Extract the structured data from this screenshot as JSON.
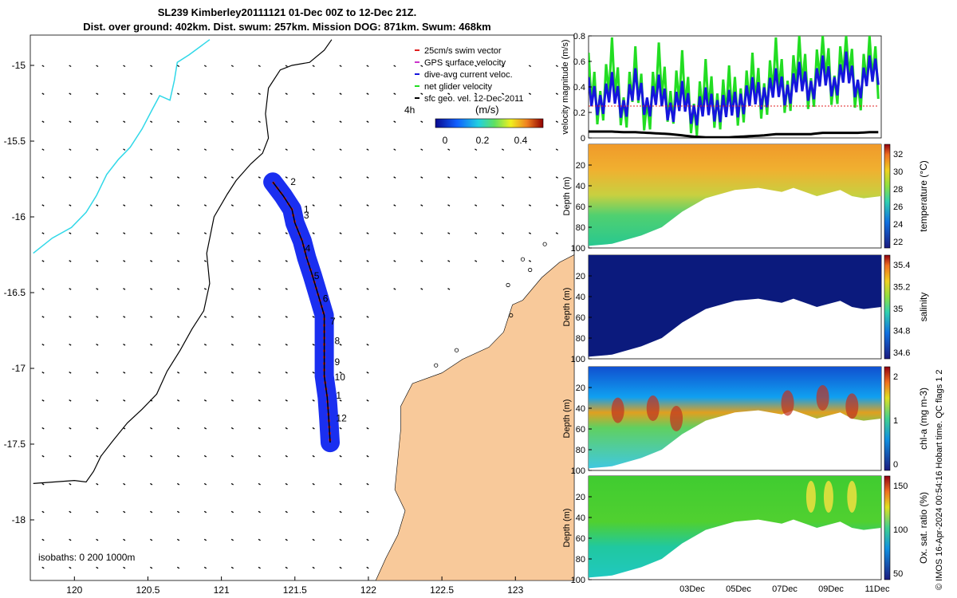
{
  "header": {
    "title_line1": "SL239 Kimberley20111121 01-Dec 00Z to 12-Dec 21Z.",
    "title_line2": "Dist. over ground: 402km. Dist. swum: 257km. Mission DOG: 871km. Swum: 468km"
  },
  "footer_note": "© IMOS 16-Apr-2024 00:54:16 Hobart time. QC flags 1  2",
  "colors": {
    "land": "#f8c99a",
    "swath": "#1a2ff0",
    "swim_vector": "#e02020",
    "coast_line": "#30d8e8",
    "isobath": "#000000",
    "net_velocity": "#22dd22",
    "dive_avg": "#1515dd",
    "gps_velocity": "#cc33cc"
  },
  "chart_data": [
    {
      "type": "scatter",
      "name": "map",
      "xlim": [
        119.7,
        123.4
      ],
      "ylim": [
        -18.4,
        -14.8
      ],
      "x_ticks": [
        "120",
        "120.5",
        "121",
        "121.5",
        "122",
        "122.5",
        "123"
      ],
      "x_tick_values": [
        120,
        120.5,
        121,
        121.5,
        122,
        122.5,
        123
      ],
      "y_ticks": [
        "-15",
        "-15.5",
        "-16",
        "-16.5",
        "-17",
        "-17.5",
        "-18"
      ],
      "y_tick_values": [
        -15,
        -15.5,
        -16,
        -16.5,
        -17,
        -17.5,
        -18
      ],
      "legend": [
        "25cm/s swim vector",
        "GPS surface velocity",
        "dive-avg current veloc.",
        "net glider velocity",
        "sfc geo. vel. 12-Dec-2011"
      ],
      "legend_placement": "top-right",
      "colorbar": {
        "label": "(m/s)",
        "ticks": [
          "0",
          "0.2",
          "0.4"
        ],
        "range": [
          0,
          0.5
        ]
      },
      "time_label": "4h",
      "isobath_label": "isobaths: 0   200  1000m",
      "day_markers": [
        {
          "label": "2",
          "lon": 121.47,
          "lat": -15.79
        },
        {
          "label": "1",
          "lon": 121.56,
          "lat": -15.97
        },
        {
          "label": "3",
          "lon": 121.56,
          "lat": -16.01
        },
        {
          "label": "4",
          "lon": 121.57,
          "lat": -16.23
        },
        {
          "label": "5",
          "lon": 121.63,
          "lat": -16.41
        },
        {
          "label": "6",
          "lon": 121.69,
          "lat": -16.56
        },
        {
          "label": "7",
          "lon": 121.74,
          "lat": -16.71
        },
        {
          "label": "8",
          "lon": 121.77,
          "lat": -16.84
        },
        {
          "label": "9",
          "lon": 121.77,
          "lat": -16.98
        },
        {
          "label": "10",
          "lon": 121.77,
          "lat": -17.08
        },
        {
          "label": "1",
          "lon": 121.78,
          "lat": -17.2
        },
        {
          "label": "12",
          "lon": 121.78,
          "lat": -17.35
        }
      ],
      "track": [
        [
          121.35,
          -15.77
        ],
        [
          121.42,
          -15.86
        ],
        [
          121.48,
          -15.95
        ],
        [
          121.5,
          -16.04
        ],
        [
          121.55,
          -16.16
        ],
        [
          121.58,
          -16.27
        ],
        [
          121.62,
          -16.39
        ],
        [
          121.66,
          -16.52
        ],
        [
          121.7,
          -16.65
        ],
        [
          121.7,
          -16.78
        ],
        [
          121.7,
          -16.92
        ],
        [
          121.7,
          -17.05
        ],
        [
          121.72,
          -17.19
        ],
        [
          121.73,
          -17.33
        ],
        [
          121.74,
          -17.49
        ]
      ],
      "isobath_0": [
        [
          119.72,
          -16.24
        ],
        [
          119.85,
          -16.14
        ],
        [
          119.98,
          -16.07
        ],
        [
          120.08,
          -15.97
        ],
        [
          120.15,
          -15.86
        ],
        [
          120.22,
          -15.72
        ],
        [
          120.3,
          -15.62
        ],
        [
          120.38,
          -15.54
        ],
        [
          120.46,
          -15.42
        ],
        [
          120.53,
          -15.29
        ],
        [
          120.58,
          -15.2
        ],
        [
          120.65,
          -15.23
        ],
        [
          120.68,
          -15.1
        ],
        [
          120.7,
          -14.98
        ],
        [
          120.78,
          -14.93
        ],
        [
          120.92,
          -14.83
        ]
      ],
      "isobath_200": [
        [
          119.72,
          -17.76
        ],
        [
          120.0,
          -17.74
        ],
        [
          120.08,
          -17.75
        ],
        [
          120.13,
          -17.68
        ],
        [
          120.18,
          -17.58
        ],
        [
          120.26,
          -17.48
        ],
        [
          120.36,
          -17.36
        ],
        [
          120.46,
          -17.27
        ],
        [
          120.56,
          -17.17
        ],
        [
          120.63,
          -17.02
        ],
        [
          120.72,
          -16.88
        ],
        [
          120.8,
          -16.74
        ],
        [
          120.88,
          -16.62
        ],
        [
          120.92,
          -16.44
        ],
        [
          120.9,
          -16.24
        ],
        [
          120.95,
          -16.0
        ],
        [
          121.04,
          -15.85
        ],
        [
          121.1,
          -15.76
        ],
        [
          121.2,
          -15.65
        ],
        [
          121.28,
          -15.58
        ],
        [
          121.32,
          -15.48
        ],
        [
          121.3,
          -15.32
        ],
        [
          121.32,
          -15.15
        ],
        [
          121.4,
          -15.03
        ],
        [
          121.48,
          -15.0
        ],
        [
          121.6,
          -14.98
        ],
        [
          121.7,
          -14.9
        ],
        [
          121.75,
          -14.83
        ]
      ],
      "land": [
        [
          123.4,
          -16.25
        ],
        [
          123.3,
          -16.3
        ],
        [
          123.18,
          -16.4
        ],
        [
          123.05,
          -16.55
        ],
        [
          122.98,
          -16.58
        ],
        [
          122.92,
          -16.76
        ],
        [
          122.82,
          -16.86
        ],
        [
          122.64,
          -16.94
        ],
        [
          122.5,
          -17.03
        ],
        [
          122.3,
          -17.1
        ],
        [
          122.22,
          -17.25
        ],
        [
          122.22,
          -17.4
        ],
        [
          122.2,
          -17.6
        ],
        [
          122.18,
          -17.8
        ],
        [
          122.25,
          -17.94
        ],
        [
          122.2,
          -18.1
        ],
        [
          122.12,
          -18.25
        ],
        [
          122.05,
          -18.4
        ],
        [
          123.4,
          -18.4
        ]
      ]
    },
    {
      "type": "line",
      "name": "velocity",
      "ylabel": "velocity magnitude (m/s)",
      "ylim": [
        0,
        0.8
      ],
      "y_ticks": [
        "0",
        "0.2",
        "0.4",
        "0.6",
        "0.8"
      ],
      "x": [
        0,
        0.5,
        1,
        1.5,
        2,
        2.5,
        3,
        3.5,
        4,
        4.5,
        5,
        5.5,
        6,
        6.5,
        7,
        7.5,
        8,
        8.5,
        9,
        9.5,
        10,
        10.5,
        11,
        11.5,
        12,
        12.5
      ],
      "series": [
        {
          "values": [
            0.5,
            0.2,
            0.62,
            0.15,
            0.55,
            0.12,
            0.58,
            0.2,
            0.52,
            0.1,
            0.45,
            0.18,
            0.4,
            0.22,
            0.5,
            0.26,
            0.62,
            0.28,
            0.68,
            0.3,
            0.75,
            0.32,
            0.78,
            0.28,
            0.7,
            0.4
          ]
        },
        {
          "values": [
            0.38,
            0.24,
            0.42,
            0.2,
            0.45,
            0.22,
            0.4,
            0.18,
            0.35,
            0.16,
            0.3,
            0.2,
            0.28,
            0.25,
            0.38,
            0.3,
            0.45,
            0.32,
            0.5,
            0.35,
            0.55,
            0.38,
            0.58,
            0.36,
            0.55,
            0.5
          ]
        },
        {
          "values": [
            0.05,
            0.05,
            0.05,
            0.045,
            0.045,
            0.04,
            0.035,
            0.03,
            0.02,
            0.01,
            0.005,
            0.005,
            0.005,
            0.01,
            0.015,
            0.02,
            0.03,
            0.03,
            0.03,
            0.03,
            0.04,
            0.04,
            0.04,
            0.04,
            0.045,
            0.045
          ]
        },
        {
          "values": [
            0.25,
            0.25,
            0.25,
            0.25,
            0.25,
            0.25,
            0.25,
            0.25,
            0.25,
            0.25,
            0.25,
            0.25,
            0.25,
            0.25,
            0.25,
            0.25,
            0.25,
            0.25,
            0.25,
            0.25,
            0.25,
            0.25,
            0.25,
            0.25,
            0.25,
            0.25
          ]
        }
      ]
    },
    {
      "type": "heatmap",
      "name": "temperature",
      "ylabel": "Depth (m)",
      "colorbar_label": "temperature (°C)",
      "ylim": [
        100,
        0
      ],
      "y_ticks": [
        "20",
        "40",
        "60",
        "80",
        "100"
      ],
      "colorbar_ticks": [
        "32",
        "30",
        "28",
        "26",
        "24",
        "22"
      ],
      "surface_color": "#f0a830",
      "deep_color": "#2ecc80"
    },
    {
      "type": "heatmap",
      "name": "salinity",
      "ylabel": "Depth (m)",
      "colorbar_label": "salinity",
      "ylim": [
        100,
        0
      ],
      "y_ticks": [
        "20",
        "40",
        "60",
        "80",
        "100"
      ],
      "colorbar_ticks": [
        "35.4",
        "35.2",
        "35",
        "34.8",
        "34.6"
      ],
      "surface_color": "#0a1a80",
      "deep_color": "#0a1a80"
    },
    {
      "type": "heatmap",
      "name": "chl-a",
      "ylabel": "Depth (m)",
      "colorbar_label": "chl-a (mg m-3)",
      "ylim": [
        100,
        0
      ],
      "y_ticks": [
        "20",
        "40",
        "60",
        "80",
        "100"
      ],
      "colorbar_ticks": [
        "2",
        "1",
        "0"
      ],
      "surface_color": "#1060d8",
      "deep_color": "#40c8d0"
    },
    {
      "type": "heatmap",
      "name": "oxygen",
      "ylabel": "Depth (m)",
      "colorbar_label": "Ox. sat. ratio (%)",
      "ylim": [
        100,
        0
      ],
      "y_ticks": [
        "20",
        "40",
        "60",
        "80",
        "100"
      ],
      "colorbar_ticks": [
        "150",
        "100",
        "50"
      ],
      "x_ticks": [
        "03Dec",
        "05Dec",
        "07Dec",
        "09Dec",
        "11Dec"
      ],
      "surface_color": "#50d030",
      "deep_color": "#20c8a0"
    }
  ]
}
